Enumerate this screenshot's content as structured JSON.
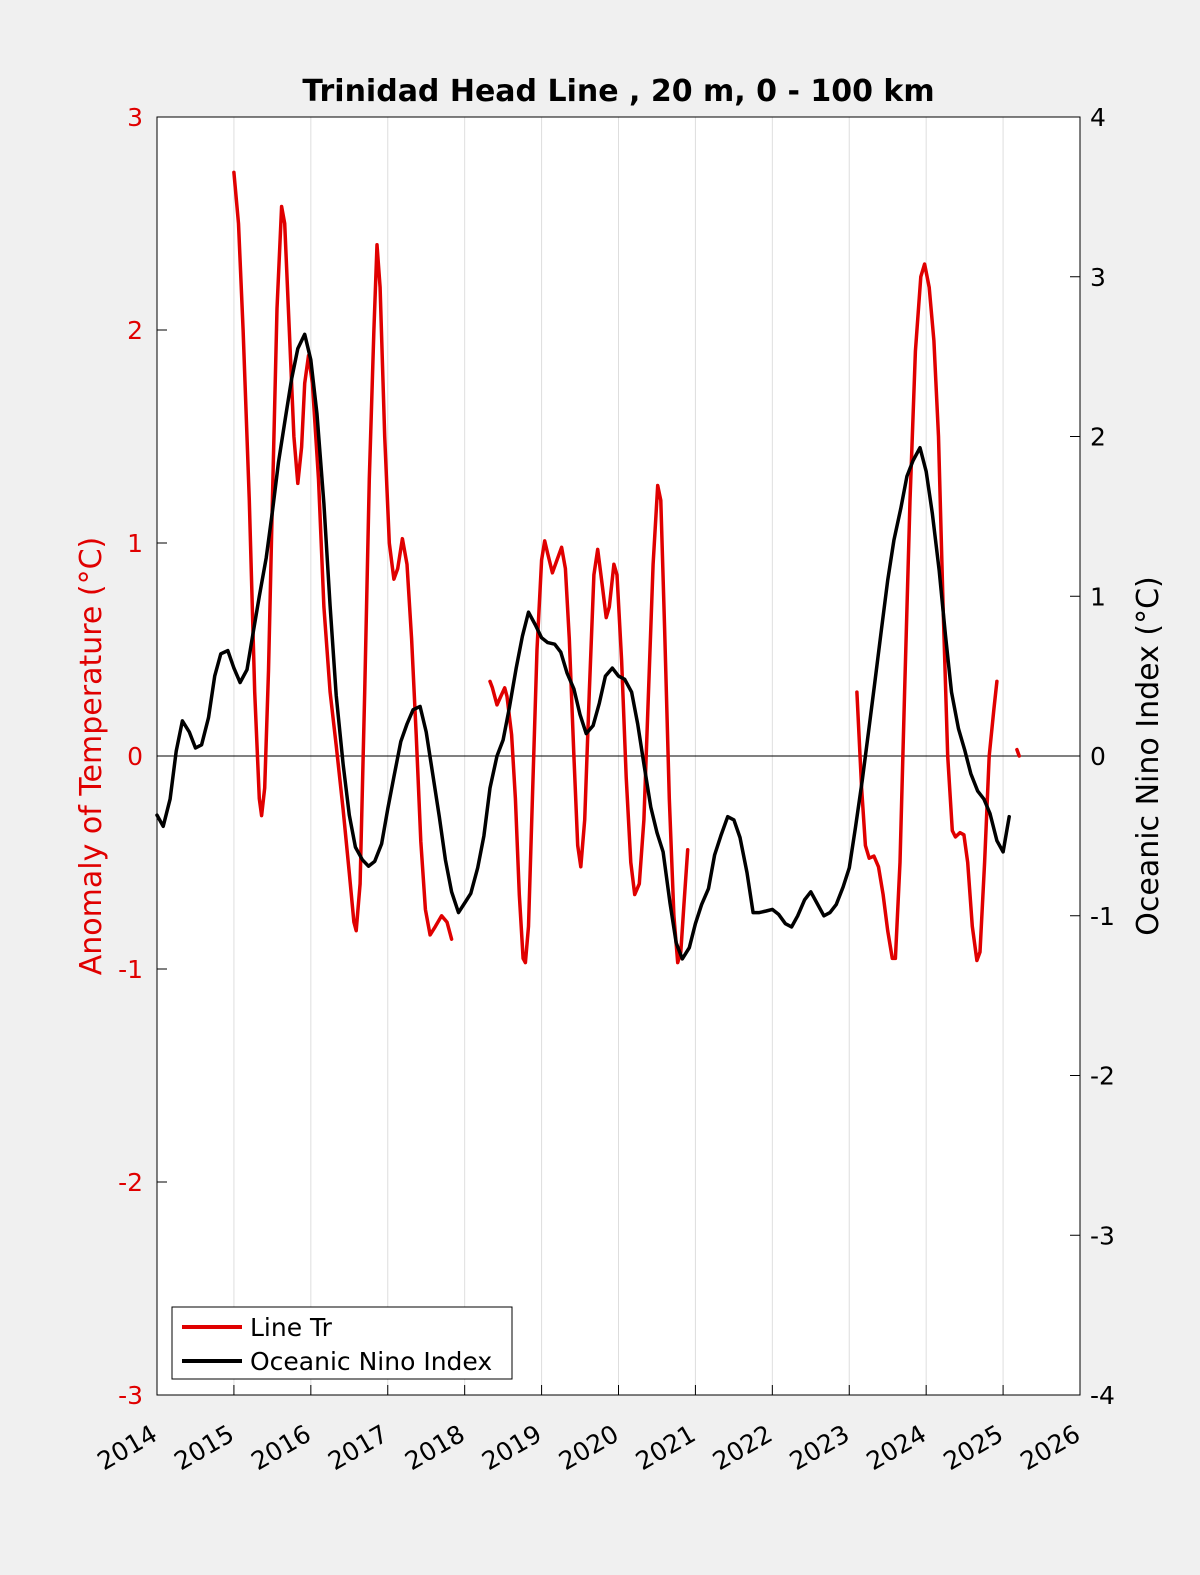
{
  "chart_data": {
    "type": "line",
    "title": "Trinidad Head Line , 20 m, 0 - 100 km",
    "ylabel_left": "Anomaly of Temperature (°C)",
    "ylabel_right": "Oceanic Nino Index (°C)",
    "xlim": [
      2014,
      2026
    ],
    "ylim_left": [
      -3,
      3
    ],
    "ylim_right": [
      -4,
      4
    ],
    "x_ticks": [
      2014,
      2015,
      2016,
      2017,
      2018,
      2019,
      2020,
      2021,
      2022,
      2023,
      2024,
      2025,
      2026
    ],
    "x_tick_labels": [
      "2014",
      "2015",
      "2016",
      "2017",
      "2018",
      "2019",
      "2020",
      "2021",
      "2022",
      "2023",
      "2024",
      "2025",
      "2026"
    ],
    "y_left_ticks": [
      -3,
      -2,
      -1,
      0,
      1,
      2,
      3
    ],
    "y_left_tick_labels": [
      "-3",
      "-2",
      "-1",
      "0",
      "1",
      "2",
      "3"
    ],
    "y_right_ticks": [
      -4,
      -3,
      -2,
      -1,
      0,
      1,
      2,
      3,
      4
    ],
    "y_right_tick_labels": [
      "-4",
      "-3",
      "-2",
      "-1",
      "0",
      "1",
      "2",
      "3",
      "4"
    ],
    "grid": "vertical",
    "legend_position": "bottom-left",
    "colors": {
      "line_tr": "#e00000",
      "oni": "#000000",
      "left_axis": "#e00000",
      "background": "#f0f0f0",
      "plot_bg": "#ffffff"
    },
    "series": [
      {
        "name": "Line Tr",
        "axis": "left",
        "color": "#e00000",
        "segments": [
          [
            [
              2015.0,
              2.74
            ],
            [
              2015.06,
              2.5
            ],
            [
              2015.12,
              2.0
            ],
            [
              2015.2,
              1.2
            ],
            [
              2015.27,
              0.3
            ],
            [
              2015.33,
              -0.2
            ],
            [
              2015.36,
              -0.28
            ],
            [
              2015.4,
              -0.15
            ],
            [
              2015.45,
              0.4
            ],
            [
              2015.5,
              1.2
            ],
            [
              2015.56,
              2.1
            ],
            [
              2015.62,
              2.58
            ],
            [
              2015.66,
              2.5
            ],
            [
              2015.72,
              2.0
            ],
            [
              2015.78,
              1.5
            ],
            [
              2015.83,
              1.28
            ],
            [
              2015.88,
              1.45
            ],
            [
              2015.92,
              1.75
            ],
            [
              2015.97,
              1.88
            ],
            [
              2016.02,
              1.75
            ],
            [
              2016.1,
              1.3
            ],
            [
              2016.17,
              0.7
            ],
            [
              2016.25,
              0.3
            ],
            [
              2016.33,
              0.05
            ],
            [
              2016.42,
              -0.25
            ],
            [
              2016.5,
              -0.55
            ],
            [
              2016.56,
              -0.78
            ],
            [
              2016.59,
              -0.82
            ],
            [
              2016.64,
              -0.6
            ],
            [
              2016.7,
              0.3
            ],
            [
              2016.76,
              1.3
            ],
            [
              2016.82,
              2.0
            ],
            [
              2016.86,
              2.4
            ],
            [
              2016.9,
              2.2
            ],
            [
              2016.96,
              1.5
            ],
            [
              2017.02,
              1.0
            ],
            [
              2017.08,
              0.83
            ],
            [
              2017.13,
              0.88
            ],
            [
              2017.19,
              1.02
            ],
            [
              2017.25,
              0.9
            ],
            [
              2017.31,
              0.55
            ],
            [
              2017.37,
              0.1
            ],
            [
              2017.43,
              -0.4
            ],
            [
              2017.49,
              -0.72
            ],
            [
              2017.55,
              -0.84
            ],
            [
              2017.62,
              -0.8
            ],
            [
              2017.7,
              -0.75
            ],
            [
              2017.77,
              -0.78
            ],
            [
              2017.83,
              -0.86
            ]
          ],
          [
            [
              2018.33,
              0.35
            ],
            [
              2018.36,
              0.32
            ],
            [
              2018.42,
              0.24
            ],
            [
              2018.47,
              0.28
            ],
            [
              2018.52,
              0.32
            ],
            [
              2018.55,
              0.28
            ],
            [
              2018.61,
              0.1
            ],
            [
              2018.66,
              -0.2
            ],
            [
              2018.71,
              -0.65
            ],
            [
              2018.76,
              -0.95
            ],
            [
              2018.79,
              -0.97
            ],
            [
              2018.83,
              -0.8
            ],
            [
              2018.88,
              -0.2
            ],
            [
              2018.94,
              0.5
            ],
            [
              2019.0,
              0.92
            ],
            [
              2019.04,
              1.01
            ],
            [
              2019.08,
              0.95
            ],
            [
              2019.14,
              0.86
            ],
            [
              2019.2,
              0.92
            ],
            [
              2019.26,
              0.98
            ],
            [
              2019.31,
              0.88
            ],
            [
              2019.36,
              0.55
            ],
            [
              2019.42,
              0.0
            ],
            [
              2019.47,
              -0.42
            ],
            [
              2019.51,
              -0.52
            ],
            [
              2019.56,
              -0.3
            ],
            [
              2019.62,
              0.3
            ],
            [
              2019.68,
              0.85
            ],
            [
              2019.73,
              0.97
            ],
            [
              2019.79,
              0.8
            ],
            [
              2019.84,
              0.65
            ],
            [
              2019.88,
              0.7
            ],
            [
              2019.94,
              0.9
            ],
            [
              2019.98,
              0.85
            ],
            [
              2020.04,
              0.45
            ],
            [
              2020.1,
              -0.1
            ],
            [
              2020.16,
              -0.5
            ],
            [
              2020.21,
              -0.65
            ],
            [
              2020.27,
              -0.6
            ],
            [
              2020.33,
              -0.3
            ],
            [
              2020.39,
              0.3
            ],
            [
              2020.45,
              0.9
            ],
            [
              2020.51,
              1.27
            ],
            [
              2020.55,
              1.2
            ],
            [
              2020.6,
              0.6
            ],
            [
              2020.66,
              -0.2
            ],
            [
              2020.72,
              -0.75
            ],
            [
              2020.77,
              -0.97
            ],
            [
              2020.81,
              -0.92
            ],
            [
              2020.85,
              -0.7
            ],
            [
              2020.9,
              -0.44
            ]
          ],
          [
            [
              2023.1,
              0.3
            ],
            [
              2023.16,
              -0.15
            ],
            [
              2023.21,
              -0.42
            ],
            [
              2023.26,
              -0.48
            ],
            [
              2023.32,
              -0.47
            ],
            [
              2023.38,
              -0.52
            ],
            [
              2023.44,
              -0.65
            ],
            [
              2023.5,
              -0.82
            ],
            [
              2023.56,
              -0.95
            ],
            [
              2023.6,
              -0.95
            ],
            [
              2023.66,
              -0.5
            ],
            [
              2023.72,
              0.3
            ],
            [
              2023.79,
              1.2
            ],
            [
              2023.86,
              1.9
            ],
            [
              2023.93,
              2.25
            ],
            [
              2023.98,
              2.31
            ],
            [
              2024.04,
              2.2
            ],
            [
              2024.1,
              1.95
            ],
            [
              2024.16,
              1.5
            ],
            [
              2024.22,
              0.7
            ],
            [
              2024.28,
              0.0
            ],
            [
              2024.34,
              -0.35
            ],
            [
              2024.38,
              -0.38
            ],
            [
              2024.44,
              -0.36
            ],
            [
              2024.49,
              -0.37
            ],
            [
              2024.54,
              -0.5
            ],
            [
              2024.6,
              -0.8
            ],
            [
              2024.66,
              -0.96
            ],
            [
              2024.7,
              -0.92
            ],
            [
              2024.76,
              -0.5
            ],
            [
              2024.82,
              0.0
            ],
            [
              2024.88,
              0.22
            ],
            [
              2024.92,
              0.35
            ]
          ],
          [
            [
              2025.18,
              0.03
            ],
            [
              2025.21,
              0.0
            ]
          ]
        ]
      },
      {
        "name": "Oceanic Nino Index",
        "axis": "right",
        "color": "#000000",
        "points": [
          [
            2014.0,
            -0.37
          ],
          [
            2014.08,
            -0.44
          ],
          [
            2014.17,
            -0.27
          ],
          [
            2014.25,
            0.03
          ],
          [
            2014.33,
            0.22
          ],
          [
            2014.42,
            0.15
          ],
          [
            2014.5,
            0.05
          ],
          [
            2014.58,
            0.07
          ],
          [
            2014.67,
            0.24
          ],
          [
            2014.75,
            0.5
          ],
          [
            2014.83,
            0.64
          ],
          [
            2014.92,
            0.66
          ],
          [
            2015.0,
            0.55
          ],
          [
            2015.08,
            0.46
          ],
          [
            2015.17,
            0.54
          ],
          [
            2015.25,
            0.77
          ],
          [
            2015.33,
            1.0
          ],
          [
            2015.42,
            1.24
          ],
          [
            2015.5,
            1.53
          ],
          [
            2015.58,
            1.84
          ],
          [
            2015.67,
            2.12
          ],
          [
            2015.75,
            2.36
          ],
          [
            2015.83,
            2.55
          ],
          [
            2015.92,
            2.64
          ],
          [
            2016.0,
            2.48
          ],
          [
            2016.08,
            2.14
          ],
          [
            2016.17,
            1.58
          ],
          [
            2016.25,
            0.94
          ],
          [
            2016.33,
            0.38
          ],
          [
            2016.42,
            -0.05
          ],
          [
            2016.5,
            -0.37
          ],
          [
            2016.58,
            -0.57
          ],
          [
            2016.67,
            -0.65
          ],
          [
            2016.75,
            -0.69
          ],
          [
            2016.83,
            -0.66
          ],
          [
            2016.92,
            -0.55
          ],
          [
            2017.0,
            -0.33
          ],
          [
            2017.08,
            -0.13
          ],
          [
            2017.17,
            0.09
          ],
          [
            2017.25,
            0.2
          ],
          [
            2017.33,
            0.29
          ],
          [
            2017.42,
            0.31
          ],
          [
            2017.5,
            0.15
          ],
          [
            2017.58,
            -0.1
          ],
          [
            2017.67,
            -0.38
          ],
          [
            2017.75,
            -0.65
          ],
          [
            2017.83,
            -0.85
          ],
          [
            2017.92,
            -0.98
          ],
          [
            2018.0,
            -0.92
          ],
          [
            2018.08,
            -0.86
          ],
          [
            2018.17,
            -0.7
          ],
          [
            2018.25,
            -0.5
          ],
          [
            2018.33,
            -0.2
          ],
          [
            2018.42,
            0.0
          ],
          [
            2018.5,
            0.1
          ],
          [
            2018.58,
            0.3
          ],
          [
            2018.67,
            0.55
          ],
          [
            2018.75,
            0.75
          ],
          [
            2018.83,
            0.9
          ],
          [
            2018.92,
            0.82
          ],
          [
            2019.0,
            0.74
          ],
          [
            2019.08,
            0.71
          ],
          [
            2019.17,
            0.7
          ],
          [
            2019.25,
            0.65
          ],
          [
            2019.33,
            0.52
          ],
          [
            2019.42,
            0.42
          ],
          [
            2019.5,
            0.26
          ],
          [
            2019.58,
            0.14
          ],
          [
            2019.67,
            0.19
          ],
          [
            2019.75,
            0.33
          ],
          [
            2019.83,
            0.5
          ],
          [
            2019.92,
            0.55
          ],
          [
            2020.0,
            0.5
          ],
          [
            2020.08,
            0.48
          ],
          [
            2020.17,
            0.4
          ],
          [
            2020.25,
            0.2
          ],
          [
            2020.33,
            -0.05
          ],
          [
            2020.42,
            -0.32
          ],
          [
            2020.5,
            -0.48
          ],
          [
            2020.58,
            -0.6
          ],
          [
            2020.67,
            -0.92
          ],
          [
            2020.75,
            -1.17
          ],
          [
            2020.83,
            -1.27
          ],
          [
            2020.92,
            -1.2
          ],
          [
            2021.0,
            -1.05
          ],
          [
            2021.08,
            -0.93
          ],
          [
            2021.17,
            -0.83
          ],
          [
            2021.25,
            -0.62
          ],
          [
            2021.33,
            -0.5
          ],
          [
            2021.42,
            -0.38
          ],
          [
            2021.5,
            -0.4
          ],
          [
            2021.58,
            -0.51
          ],
          [
            2021.67,
            -0.73
          ],
          [
            2021.75,
            -0.98
          ],
          [
            2021.83,
            -0.98
          ],
          [
            2021.92,
            -0.97
          ],
          [
            2022.0,
            -0.96
          ],
          [
            2022.08,
            -0.99
          ],
          [
            2022.17,
            -1.05
          ],
          [
            2022.25,
            -1.07
          ],
          [
            2022.33,
            -1.0
          ],
          [
            2022.42,
            -0.9
          ],
          [
            2022.5,
            -0.85
          ],
          [
            2022.58,
            -0.92
          ],
          [
            2022.67,
            -1.0
          ],
          [
            2022.75,
            -0.98
          ],
          [
            2022.83,
            -0.93
          ],
          [
            2022.92,
            -0.82
          ],
          [
            2023.0,
            -0.7
          ],
          [
            2023.08,
            -0.45
          ],
          [
            2023.17,
            -0.15
          ],
          [
            2023.25,
            0.15
          ],
          [
            2023.33,
            0.45
          ],
          [
            2023.42,
            0.8
          ],
          [
            2023.5,
            1.1
          ],
          [
            2023.58,
            1.35
          ],
          [
            2023.67,
            1.55
          ],
          [
            2023.75,
            1.75
          ],
          [
            2023.83,
            1.85
          ],
          [
            2023.92,
            1.93
          ],
          [
            2024.0,
            1.78
          ],
          [
            2024.08,
            1.52
          ],
          [
            2024.17,
            1.16
          ],
          [
            2024.25,
            0.76
          ],
          [
            2024.33,
            0.4
          ],
          [
            2024.42,
            0.17
          ],
          [
            2024.5,
            0.04
          ],
          [
            2024.58,
            -0.11
          ],
          [
            2024.67,
            -0.22
          ],
          [
            2024.75,
            -0.27
          ],
          [
            2024.83,
            -0.36
          ],
          [
            2024.92,
            -0.53
          ],
          [
            2025.0,
            -0.6
          ],
          [
            2025.08,
            -0.38
          ]
        ]
      }
    ]
  }
}
